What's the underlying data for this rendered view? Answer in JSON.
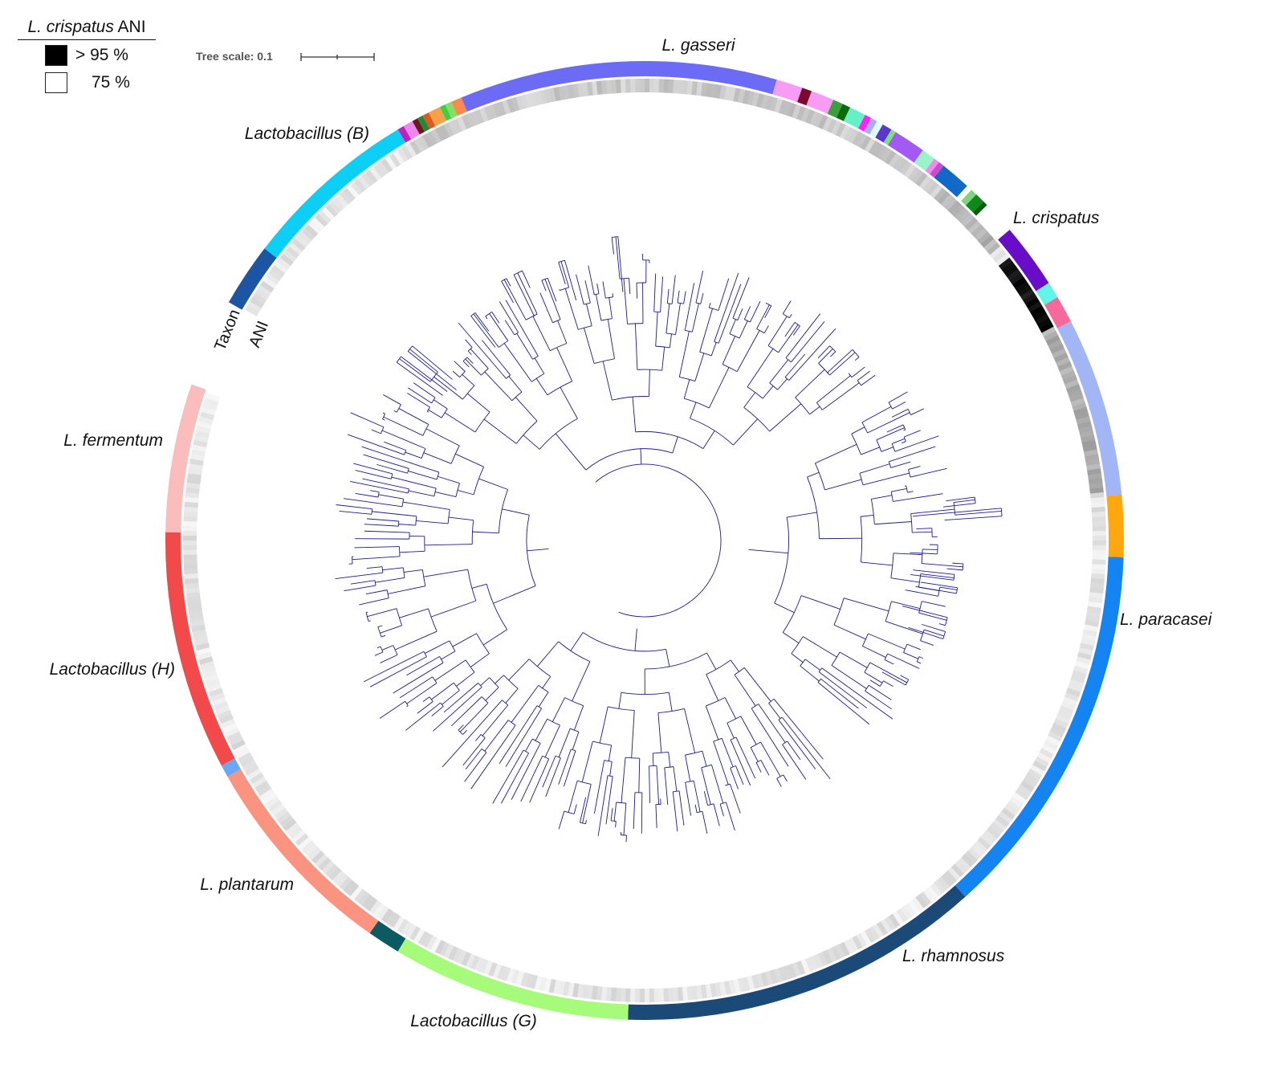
{
  "legend": {
    "title_italic": "L. crispatus",
    "title_rest": "ANI",
    "items": [
      {
        "label": "> 95 %",
        "color": "#000000"
      },
      {
        "label": "75 %",
        "color": "#ffffff"
      }
    ]
  },
  "tree_scale": {
    "label": "Tree scale: 0.1"
  },
  "ring_labels": {
    "taxon": "Taxon",
    "ani": "ANI"
  },
  "clades": [
    {
      "name": "L. gasseri",
      "color": "#6b6bf5",
      "start": -22.5,
      "end": 16
    },
    {
      "name": "L. crispatus",
      "color": "#6a0dc9",
      "start": 49.6,
      "end": 57.5
    },
    {
      "name": "L. paracasei",
      "color": "#1484f2",
      "start": 92,
      "end": 138
    },
    {
      "name": "L. rhamnosus",
      "color": "#1b4a78",
      "start": 138,
      "end": 182
    },
    {
      "name": "Lactobacillus (G)",
      "color": "#a6fb7b",
      "start": 182,
      "end": 211
    },
    {
      "name": "L. plantarum",
      "color": "#fa9480",
      "start": 215,
      "end": 240.5
    },
    {
      "name": "Lactobacillus (H)",
      "color": "#f24a4a",
      "start": 242,
      "end": 271
    },
    {
      "name": "L. fermentum",
      "color": "#fbbcbc",
      "start": 271,
      "end": 289
    },
    {
      "name": "Lactobacillus (B)",
      "color": "#0bcff5",
      "start": -52.5,
      "end": -31
    }
  ],
  "colors": {
    "branch": "#1b1b8c",
    "ani_high": "#000000",
    "ani_low": "#ffffff"
  }
}
